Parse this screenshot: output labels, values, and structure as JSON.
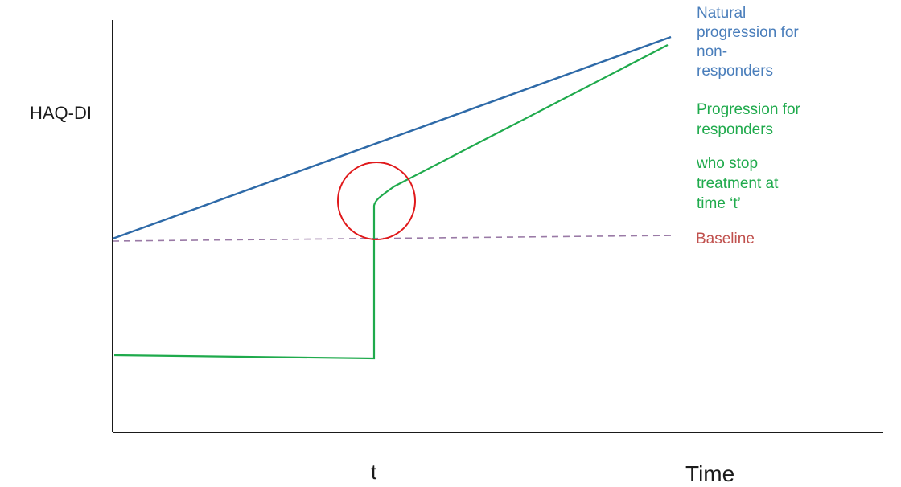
{
  "axes": {
    "y_label": "HAQ-DI",
    "x_tick_label": "t",
    "x_label": "Time"
  },
  "legend": {
    "natural_line1": "Natural",
    "natural_line2": "progression for",
    "natural_line3": "non-",
    "natural_line4": "responders",
    "resp_line1": "Progression for",
    "resp_line2": "responders",
    "resp_line3": "who stop",
    "resp_line4": "treatment at",
    "resp_line5": "time ‘t’",
    "baseline": "Baseline"
  },
  "colors": {
    "axis": "#1a1a1a",
    "natural": "#2e6aa8",
    "responders": "#1faa4c",
    "baseline": "#9a7aa6",
    "highlight_circle": "#e0191b",
    "natural_text": "#4a7ebb",
    "responders_text": "#1faa4c",
    "baseline_text": "#c0504d"
  }
}
